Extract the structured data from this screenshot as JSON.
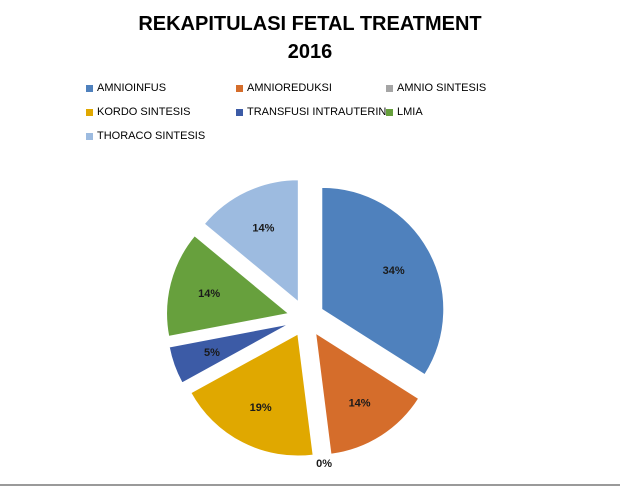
{
  "chart_data": {
    "type": "pie",
    "title_line1": "REKAPITULASI  FETAL TREATMENT",
    "title_line2": "2016",
    "legend_position": "top",
    "slices": [
      {
        "name": "AMNIOINFUS",
        "value": 34,
        "label": "34%",
        "color": "#4f81bd"
      },
      {
        "name": "AMNIOREDUKSI",
        "value": 14,
        "label": "14%",
        "color": "#d56d2b"
      },
      {
        "name": "AMNIO SINTESIS",
        "value": 0,
        "label": "0%",
        "color": "#a5a5a5"
      },
      {
        "name": "KORDO SINTESIS",
        "value": 19,
        "label": "19%",
        "color": "#e0a800"
      },
      {
        "name": "TRANSFUSI INTRAUTERIN",
        "value": 5,
        "label": "5%",
        "color": "#3c5ba6"
      },
      {
        "name": "LMIA",
        "value": 14,
        "label": "14%",
        "color": "#67a03d"
      },
      {
        "name": "THORACO SINTESIS",
        "value": 14,
        "label": "14%",
        "color": "#9dbbe0"
      }
    ]
  }
}
